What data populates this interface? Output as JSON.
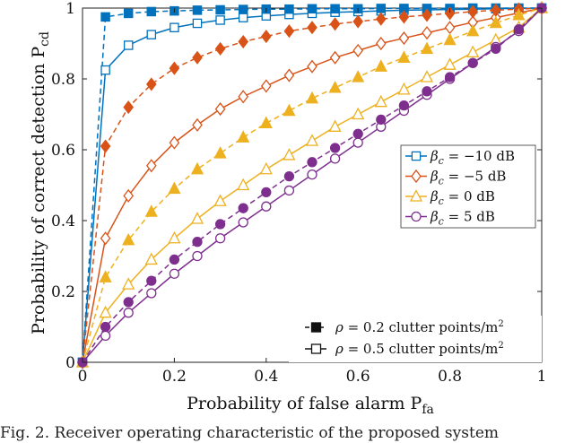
{
  "caption": "Fig. 2. Receiver operating characteristic of the proposed system",
  "chart_data": {
    "type": "line",
    "xlabel": "Probability of false alarm P",
    "xlabel_sub": "fa",
    "ylabel": "Probability of correct detection P",
    "ylabel_sub": "cd",
    "xlim": [
      0,
      1
    ],
    "ylim": [
      0,
      1
    ],
    "x_ticks": [
      "0",
      "0.2",
      "0.4",
      "0.6",
      "0.8",
      "1"
    ],
    "y_ticks": [
      "0",
      "0.2",
      "0.4",
      "0.6",
      "0.8",
      "1"
    ],
    "grid": false,
    "legend_beta_position": "middle-right",
    "legend_rho_position": "bottom-right",
    "x": [
      0,
      0.05,
      0.1,
      0.15,
      0.2,
      0.25,
      0.3,
      0.35,
      0.4,
      0.45,
      0.5,
      0.55,
      0.6,
      0.65,
      0.7,
      0.75,
      0.8,
      0.85,
      0.9,
      0.95,
      1
    ],
    "series": [
      {
        "name": "β_c = −10 dB",
        "beta": "−10",
        "color": "#0072BD",
        "marker": "square",
        "rho02": [
          0,
          0.975,
          0.985,
          0.99,
          0.992,
          0.994,
          0.995,
          0.996,
          0.997,
          0.997,
          0.998,
          0.998,
          0.998,
          0.999,
          0.999,
          0.999,
          0.999,
          1,
          1,
          1,
          1
        ],
        "rho05": [
          0,
          0.825,
          0.895,
          0.925,
          0.945,
          0.957,
          0.966,
          0.973,
          0.978,
          0.982,
          0.985,
          0.988,
          0.99,
          0.992,
          0.994,
          0.995,
          0.996,
          0.997,
          0.998,
          0.999,
          1
        ]
      },
      {
        "name": "β_c = −5 dB",
        "beta": "−5",
        "color": "#D95319",
        "marker": "diamond",
        "rho02": [
          0,
          0.61,
          0.72,
          0.785,
          0.83,
          0.86,
          0.885,
          0.905,
          0.92,
          0.935,
          0.945,
          0.955,
          0.962,
          0.969,
          0.975,
          0.98,
          0.985,
          0.99,
          0.994,
          0.997,
          1
        ],
        "rho05": [
          0,
          0.35,
          0.47,
          0.555,
          0.62,
          0.67,
          0.715,
          0.75,
          0.78,
          0.81,
          0.835,
          0.86,
          0.88,
          0.9,
          0.915,
          0.93,
          0.945,
          0.96,
          0.973,
          0.986,
          1
        ]
      },
      {
        "name": "β_c = 0 dB",
        "beta": "0",
        "color": "#EDB120",
        "marker": "triangle",
        "rho02": [
          0,
          0.24,
          0.345,
          0.425,
          0.49,
          0.545,
          0.59,
          0.635,
          0.675,
          0.71,
          0.745,
          0.775,
          0.805,
          0.835,
          0.86,
          0.885,
          0.91,
          0.935,
          0.958,
          0.98,
          1
        ],
        "rho05": [
          0,
          0.14,
          0.22,
          0.29,
          0.35,
          0.405,
          0.455,
          0.5,
          0.545,
          0.585,
          0.625,
          0.665,
          0.7,
          0.735,
          0.77,
          0.805,
          0.84,
          0.875,
          0.91,
          0.945,
          1
        ]
      },
      {
        "name": "β_c = 5 dB",
        "beta": "5",
        "color": "#7E2F8E",
        "marker": "circle",
        "rho02": [
          0,
          0.1,
          0.17,
          0.23,
          0.29,
          0.34,
          0.39,
          0.435,
          0.48,
          0.525,
          0.565,
          0.605,
          0.645,
          0.685,
          0.725,
          0.765,
          0.805,
          0.845,
          0.885,
          0.94,
          1
        ],
        "rho05": [
          0,
          0.075,
          0.14,
          0.195,
          0.25,
          0.3,
          0.35,
          0.395,
          0.44,
          0.485,
          0.53,
          0.575,
          0.62,
          0.665,
          0.71,
          0.755,
          0.8,
          0.845,
          0.89,
          0.935,
          1
        ]
      }
    ],
    "rho_legend": [
      {
        "value": "0.2",
        "style": "filled-dashed"
      },
      {
        "value": "0.5",
        "style": "hollow-solid"
      }
    ],
    "rho_symbol": "ρ =",
    "rho_unit": "clutter points/m",
    "rho_unit_sup": "2",
    "beta_symbol": "β",
    "beta_sub": "c",
    "beta_eq": " = ",
    "beta_unit": " dB"
  }
}
